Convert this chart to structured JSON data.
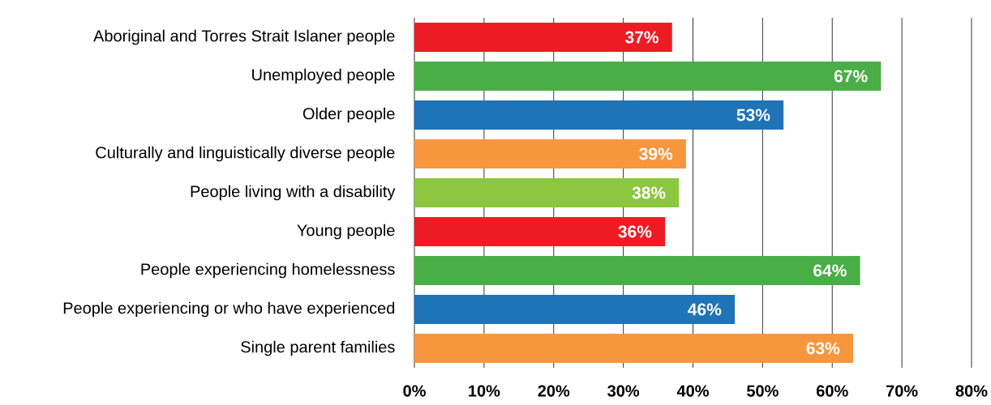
{
  "chart_data": {
    "type": "bar",
    "orientation": "horizontal",
    "categories": [
      "Aboriginal and Torres Strait Islaner people",
      "Unemployed people",
      "Older people",
      "Culturally and linguistically diverse people",
      "People living with a disability",
      "Young people",
      "People experiencing homelessness",
      "People experiencing or who have experienced",
      "Single parent families"
    ],
    "values": [
      37,
      67,
      53,
      39,
      38,
      36,
      64,
      46,
      63
    ],
    "colors": [
      "#ed1c24",
      "#4aae46",
      "#1f73b7",
      "#f7963c",
      "#8dc63f",
      "#ed1c24",
      "#4aae46",
      "#1f73b7",
      "#f7963c"
    ],
    "value_labels": [
      "37%",
      "67%",
      "53%",
      "39%",
      "38%",
      "36%",
      "64%",
      "46%",
      "63%"
    ],
    "xlim": [
      0,
      80
    ],
    "xticks": [
      {
        "value": 0,
        "label": "0%"
      },
      {
        "value": 10,
        "label": "10%"
      },
      {
        "value": 20,
        "label": "20%"
      },
      {
        "value": 30,
        "label": "30%"
      },
      {
        "value": 40,
        "label": "40%"
      },
      {
        "value": 50,
        "label": "50%"
      },
      {
        "value": 60,
        "label": "60%"
      },
      {
        "value": 70,
        "label": "70%"
      },
      {
        "value": 80,
        "label": "80%"
      }
    ],
    "grid": "x"
  }
}
